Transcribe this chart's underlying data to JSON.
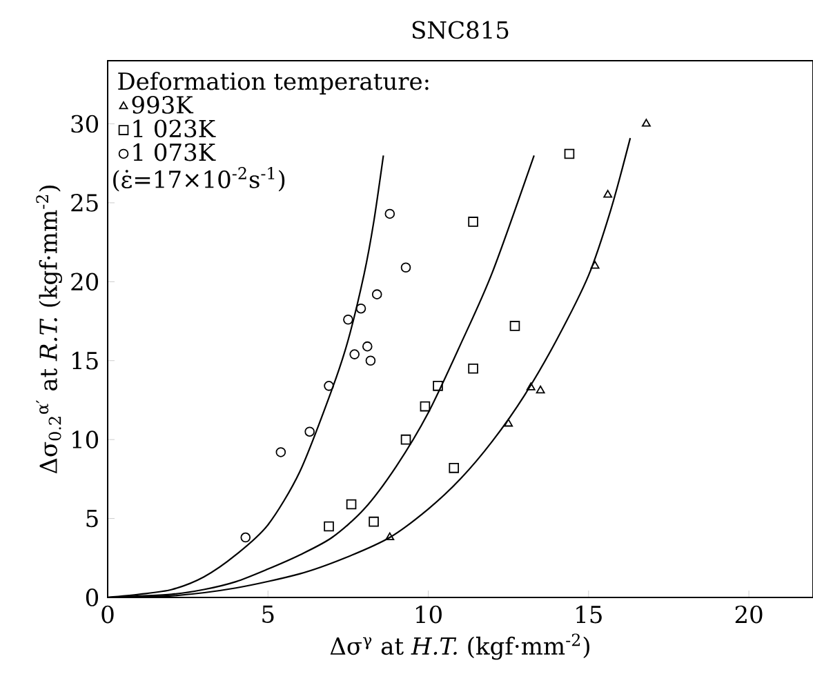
{
  "chart_data": {
    "type": "scatter",
    "title": "SNC815",
    "xlabel": "Δσ$^{γ}$ at *H.T.* (kgf·mm$^{-2}$)",
    "ylabel": "Δσ$_{0.2}$$^{α′}$ at *R.T.* (kgf·mm$^{-2}$)",
    "legend_title": "Deformation temperature:",
    "annotations": [
      "(ε̇=17×10$^{-2}$s$^{-1}$)"
    ],
    "xlim": [
      0,
      22
    ],
    "ylim": [
      0,
      34
    ],
    "xticks": [
      0,
      5,
      10,
      15,
      20
    ],
    "yticks": [
      0,
      5,
      10,
      15,
      20,
      25,
      30
    ],
    "grid": false,
    "legend": "top left",
    "series": [
      {
        "name": "993K",
        "marker": "triangle",
        "color": "#000000",
        "x": [
          8.8,
          12.5,
          13.2,
          13.5,
          15.2,
          15.6,
          16.8
        ],
        "values": [
          3.8,
          11.0,
          13.3,
          13.1,
          21.0,
          25.5,
          30.0
        ]
      },
      {
        "name": "1 023K",
        "marker": "square",
        "color": "#000000",
        "x": [
          6.9,
          7.6,
          8.3,
          9.3,
          9.9,
          10.3,
          10.8,
          11.4,
          11.4,
          12.7,
          14.4
        ],
        "values": [
          4.5,
          5.9,
          4.8,
          10.0,
          12.1,
          13.4,
          8.2,
          14.5,
          23.8,
          17.2,
          28.1
        ]
      },
      {
        "name": "1 073K",
        "marker": "circle",
        "color": "#000000",
        "x": [
          4.3,
          5.4,
          6.3,
          6.9,
          7.5,
          7.7,
          7.9,
          8.1,
          8.2,
          8.4,
          8.8,
          9.3
        ],
        "values": [
          3.8,
          9.2,
          10.5,
          13.4,
          17.6,
          15.4,
          18.3,
          15.9,
          15.0,
          19.2,
          24.3,
          20.9
        ]
      },
      {
        "type": "line",
        "color": "#000000",
        "x": [
          0,
          2,
          4,
          6,
          7.4,
          8.8,
          10,
          11,
          12,
          13,
          14,
          15,
          15.7,
          16.3
        ],
        "values": [
          0,
          0.1,
          0.6,
          1.5,
          2.5,
          3.8,
          5.6,
          7.5,
          9.9,
          12.8,
          16.3,
          20.4,
          24.6,
          29.1
        ]
      },
      {
        "type": "line",
        "color": "#000000",
        "x": [
          0,
          2,
          3,
          4,
          5,
          6,
          7,
          8,
          9,
          10,
          11,
          12,
          13.3
        ],
        "values": [
          0,
          0.2,
          0.5,
          1.0,
          1.8,
          2.7,
          3.8,
          5.6,
          8.3,
          11.7,
          16.0,
          20.6,
          28.0
        ]
      },
      {
        "type": "line",
        "color": "#000000",
        "x": [
          0,
          1,
          2,
          3,
          4,
          5,
          6,
          7,
          7.5,
          8,
          8.3,
          8.6
        ],
        "values": [
          0,
          0.2,
          0.5,
          1.3,
          2.7,
          4.6,
          8.0,
          13.2,
          16.3,
          20.5,
          23.8,
          28.0
        ]
      }
    ]
  }
}
